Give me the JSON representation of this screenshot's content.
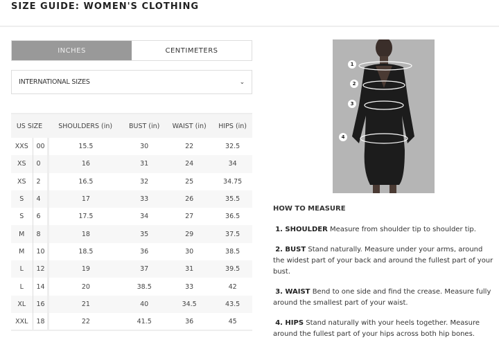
{
  "title": "SIZE GUIDE: WOMEN'S CLOTHING",
  "units": {
    "tabs": [
      {
        "label": "INCHES",
        "active": true
      },
      {
        "label": "CENTIMETERS",
        "active": false
      }
    ]
  },
  "size_select": {
    "value": "INTERNATIONAL SIZES",
    "icon": "chevron-down-icon"
  },
  "table": {
    "headers": [
      "US SIZE",
      "SHOULDERS (in)",
      "BUST (in)",
      "WAIST (in)",
      "HIPS (in)"
    ],
    "rows": [
      [
        "XXS",
        "00",
        "15.5",
        "30",
        "22",
        "32.5"
      ],
      [
        "XS",
        "0",
        "16",
        "31",
        "24",
        "34"
      ],
      [
        "XS",
        "2",
        "16.5",
        "32",
        "25",
        "34.75"
      ],
      [
        "S",
        "4",
        "17",
        "33",
        "26",
        "35.5"
      ],
      [
        "S",
        "6",
        "17.5",
        "34",
        "27",
        "36.5"
      ],
      [
        "M",
        "8",
        "18",
        "35",
        "29",
        "37.5"
      ],
      [
        "M",
        "10",
        "18.5",
        "36",
        "30",
        "38.5"
      ],
      [
        "L",
        "12",
        "19",
        "37",
        "31",
        "39.5"
      ],
      [
        "L",
        "14",
        "20",
        "38.5",
        "33",
        "42"
      ],
      [
        "XL",
        "16",
        "21",
        "40",
        "34.5",
        "43.5"
      ],
      [
        "XXL",
        "18",
        "22",
        "41.5",
        "36",
        "45"
      ]
    ]
  },
  "photo": {
    "markers": [
      "1",
      "2",
      "3",
      "4"
    ]
  },
  "how_to_measure": {
    "heading": "HOW TO MEASURE",
    "steps": [
      {
        "label": "1. SHOULDER",
        "text": "Measure from shoulder tip to shoulder tip."
      },
      {
        "label": "2. BUST",
        "text": "Stand naturally. Measure under your arms, around the widest part of your back and around the fullest part of your bust."
      },
      {
        "label": "3. WAIST",
        "text": "Bend to one side and find the crease. Measure fully around the smallest part of your waist."
      },
      {
        "label": "4. HIPS",
        "text": "Stand naturally with your heels together. Measure around the fullest part of your hips across both hip bones."
      }
    ]
  }
}
